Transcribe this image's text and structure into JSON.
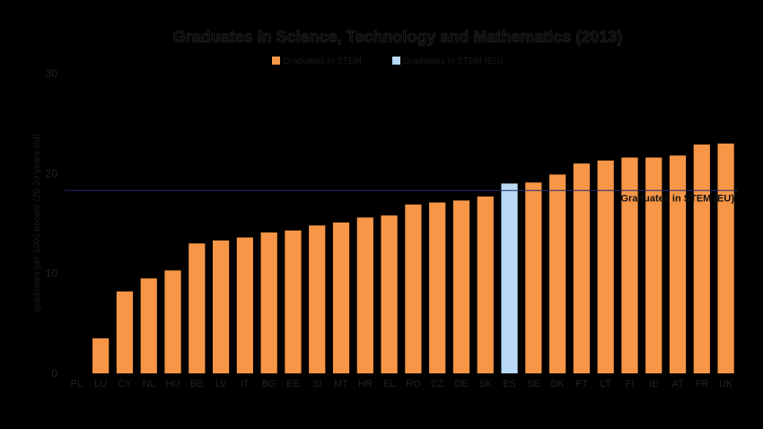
{
  "chart_data": {
    "type": "bar",
    "title": "Graduates in Science, Technology and Mathematics (2013)",
    "ylabel": "graduates per 1000 people (20-29 years old)",
    "xlabel": "",
    "ylim": [
      0,
      30
    ],
    "yticks": [
      0,
      10,
      20,
      30
    ],
    "categories": [
      "PL",
      "LU",
      "CY",
      "NL",
      "HU",
      "BE",
      "LV",
      "IT",
      "BG",
      "EE",
      "SI",
      "MT",
      "HR",
      "EL",
      "RO",
      "CZ",
      "DE",
      "SK",
      "ES",
      "SE",
      "DK",
      "PT",
      "LT",
      "FI",
      "IE",
      "AT",
      "FR",
      "UK"
    ],
    "series": [
      {
        "name": "Graduates in STEM",
        "values": [
          null,
          3.5,
          8.2,
          9.5,
          10.3,
          13.0,
          13.3,
          13.6,
          14.1,
          14.3,
          14.8,
          15.1,
          15.6,
          15.8,
          16.9,
          17.1,
          17.3,
          17.7,
          19.0,
          19.1,
          19.9,
          21.0,
          21.3,
          21.6,
          21.6,
          21.8,
          22.9,
          23.0
        ],
        "color": "#F79646"
      },
      {
        "name": "Graduates in STEM (EU)",
        "highlight_category": "ES",
        "color": "#B9D9F5"
      }
    ],
    "reference_line": {
      "label": "Graduates in STEM (EU)",
      "value": 18.3,
      "color": "#1F2A6B"
    },
    "grid": false,
    "legend": "top-center",
    "background": "#000000"
  }
}
